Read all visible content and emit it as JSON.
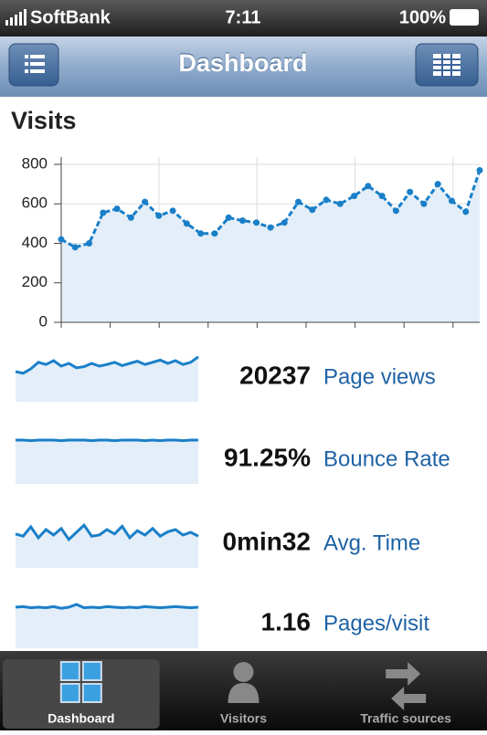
{
  "status_bar": {
    "carrier": "SoftBank",
    "time": "7:11",
    "battery": "100%"
  },
  "nav_bar": {
    "title": "Dashboard"
  },
  "chart_data": {
    "type": "line",
    "title": "Visits",
    "color": "#1a7fc8",
    "values": [
      420,
      380,
      400,
      555,
      575,
      530,
      610,
      540,
      565,
      500,
      450,
      450,
      530,
      515,
      505,
      480,
      505,
      610,
      570,
      620,
      600,
      640,
      690,
      640,
      565,
      660,
      600,
      700,
      615,
      560,
      770
    ],
    "ylim": [
      0,
      800
    ],
    "yticks": [
      0,
      200,
      400,
      600,
      800
    ],
    "grid": true
  },
  "metrics": [
    {
      "value": 20237,
      "label": "Page views",
      "ylim": [
        0,
        100
      ],
      "sparkline": [
        55,
        52,
        60,
        72,
        68,
        75,
        65,
        70,
        62,
        64,
        70,
        65,
        68,
        72,
        66,
        70,
        74,
        68,
        72,
        76,
        70,
        75,
        68,
        72,
        82
      ]
    },
    {
      "value": "91.25%",
      "label": "Bounce Rate",
      "ylim": [
        0,
        100
      ],
      "sparkline": [
        80,
        80,
        79,
        80,
        80,
        80,
        79,
        80,
        80,
        80,
        79,
        80,
        80,
        79,
        80,
        80,
        80,
        79,
        80,
        79,
        80,
        80,
        79,
        80,
        80
      ]
    },
    {
      "value": "0min32",
      "label": "Avg. Time",
      "ylim": [
        0,
        100
      ],
      "sparkline": [
        62,
        58,
        75,
        55,
        70,
        60,
        72,
        52,
        65,
        78,
        58,
        60,
        70,
        62,
        76,
        55,
        68,
        60,
        72,
        58,
        66,
        70,
        60,
        65,
        58
      ]
    },
    {
      "value": 1.16,
      "label": "Pages/visit",
      "ylim": [
        0,
        100
      ],
      "sparkline": [
        75,
        76,
        74,
        75,
        74,
        76,
        73,
        75,
        80,
        74,
        75,
        74,
        76,
        75,
        74,
        75,
        74,
        76,
        75,
        74,
        75,
        76,
        75,
        74,
        75
      ]
    }
  ],
  "tab_bar": {
    "tabs": [
      "Dashboard",
      "Visitors",
      "Traffic sources"
    ],
    "selected": 0
  }
}
